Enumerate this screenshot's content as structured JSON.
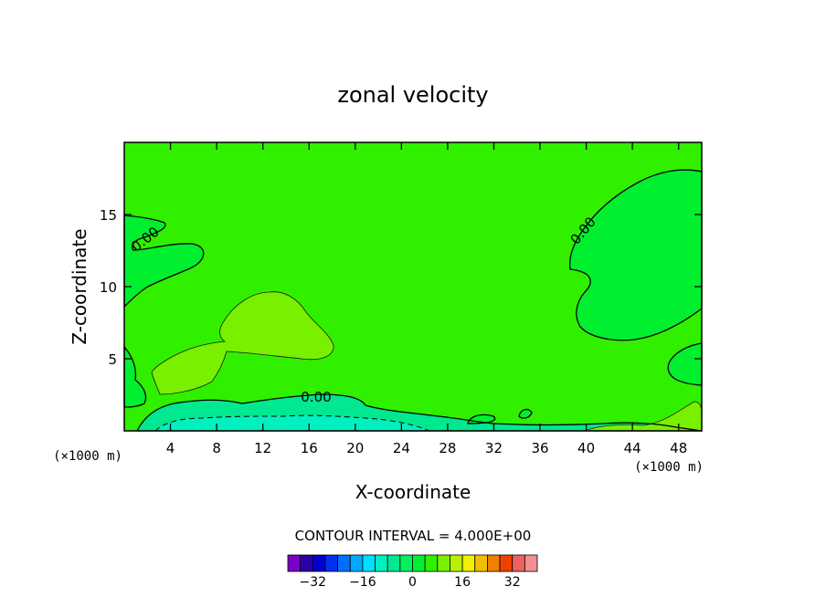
{
  "chart_data": {
    "type": "contour",
    "title": "zonal velocity",
    "xlabel": "X-coordinate",
    "ylabel": "Z-coordinate",
    "x_unit": "(×1000 m)",
    "y_unit": "(×1000 m)",
    "xlim": [
      0,
      50
    ],
    "ylim": [
      0,
      20
    ],
    "x_ticks": [
      4,
      8,
      12,
      16,
      20,
      24,
      28,
      32,
      36,
      40,
      44,
      48
    ],
    "y_ticks": [
      5,
      10,
      15
    ],
    "contour_interval_text": "CONTOUR INTERVAL = 4.000E+00",
    "contour_labels": [
      "0.00",
      "0.00",
      "0.00"
    ],
    "colorbar": {
      "tick_values": [
        -32,
        -16,
        0,
        16,
        32
      ],
      "tick_labels": [
        "−32",
        "−16",
        "0",
        "16",
        "32"
      ],
      "colors": [
        "#7a00c8",
        "#2a00a8",
        "#0000d0",
        "#0030f0",
        "#0070ff",
        "#00a8ff",
        "#00e0ff",
        "#00f0c0",
        "#00e890",
        "#00f060",
        "#00f030",
        "#30f000",
        "#78f000",
        "#b8f000",
        "#f0f000",
        "#f0c000",
        "#f08000",
        "#f04000",
        "#f06060",
        "#f09090"
      ]
    },
    "regions": [
      {
        "name": "background",
        "value_range": [
          0,
          4
        ],
        "color": "#30f000"
      },
      {
        "name": "weak-easterly-upper-left",
        "value_range": [
          -4,
          0
        ],
        "color": "#00f030"
      },
      {
        "name": "weak-easterly-upper-right",
        "value_range": [
          -4,
          0
        ],
        "color": "#00f030"
      },
      {
        "name": "westerly-core",
        "value_range": [
          4,
          8
        ],
        "color": "#78f000"
      },
      {
        "name": "near-surface-easterly",
        "value_range": [
          -8,
          -4
        ],
        "color": "#00e890"
      }
    ]
  }
}
